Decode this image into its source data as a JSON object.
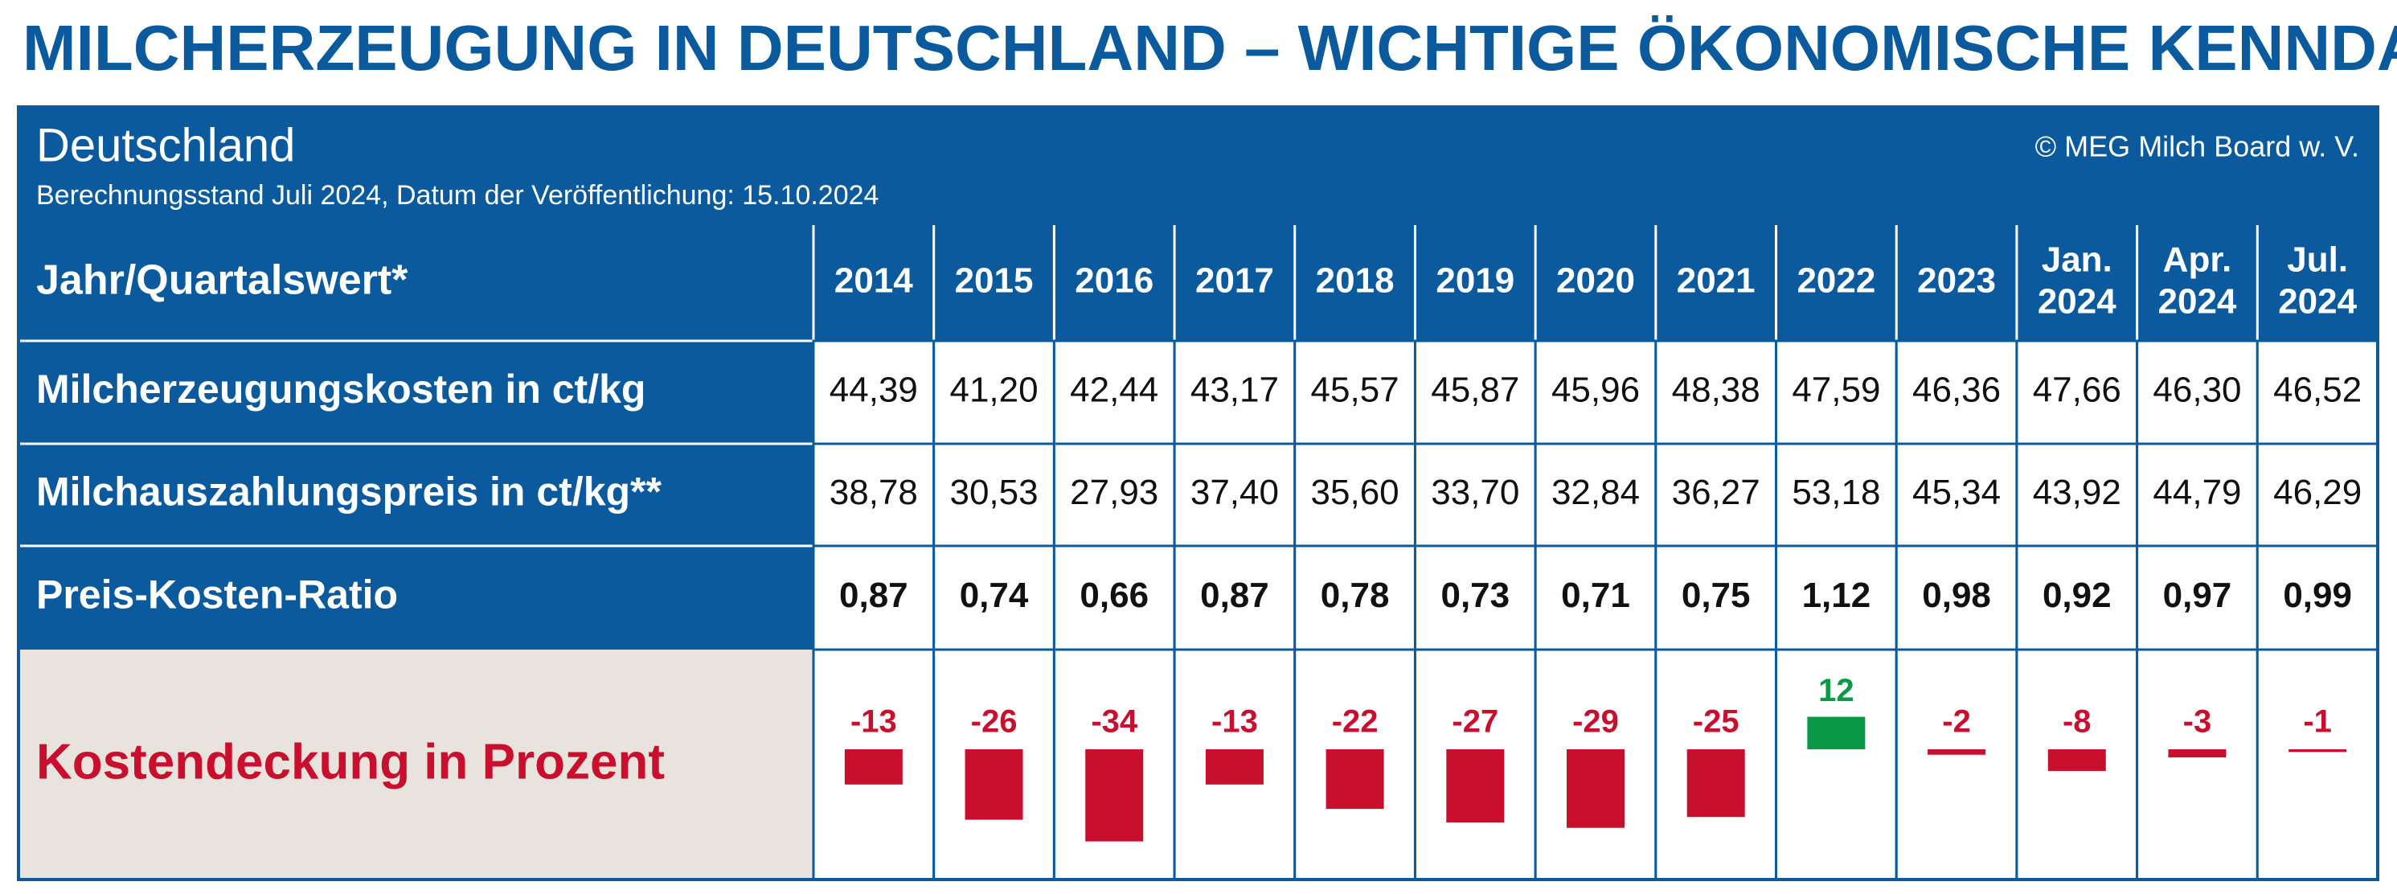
{
  "title": "MILCHERZEUGUNG IN DEUTSCHLAND – WICHTIGE ÖKONOMISCHE KENNDATEN",
  "header": {
    "region": "Deutschland",
    "subtitle": "Berechnungsstand Juli 2024, Datum der Veröffentlichung: 15.10.2024",
    "copyright": "© MEG Milch Board w. V."
  },
  "table": {
    "row_header": "Jahr/Quartalswert*",
    "columns": [
      [
        "2014"
      ],
      [
        "2015"
      ],
      [
        "2016"
      ],
      [
        "2017"
      ],
      [
        "2018"
      ],
      [
        "2019"
      ],
      [
        "2020"
      ],
      [
        "2021"
      ],
      [
        "2022"
      ],
      [
        "2023"
      ],
      [
        "Jan.",
        "2024"
      ],
      [
        "Apr.",
        "2024"
      ],
      [
        "Jul.",
        "2024"
      ]
    ],
    "rows": [
      {
        "label": "Milcherzeugungskosten in ct/kg",
        "values": [
          "44,39",
          "41,20",
          "42,44",
          "43,17",
          "45,57",
          "45,87",
          "45,96",
          "48,38",
          "47,59",
          "46,36",
          "47,66",
          "46,30",
          "46,52"
        ]
      },
      {
        "label": "Milchauszahlungspreis in ct/kg**",
        "values": [
          "38,78",
          "30,53",
          "27,93",
          "37,40",
          "35,60",
          "33,70",
          "32,84",
          "36,27",
          "53,18",
          "45,34",
          "43,92",
          "44,79",
          "46,29"
        ]
      },
      {
        "label": "Preis-Kosten-Ratio",
        "bold": true,
        "values": [
          "0,87",
          "0,74",
          "0,66",
          "0,87",
          "0,78",
          "0,73",
          "0,71",
          "0,75",
          "1,12",
          "0,98",
          "0,92",
          "0,97",
          "0,99"
        ]
      }
    ]
  },
  "coverage": {
    "label": "Kostendeckung in Prozent",
    "values": [
      -13,
      -26,
      -34,
      -13,
      -22,
      -27,
      -29,
      -25,
      12,
      -2,
      -8,
      -3,
      -1
    ],
    "positive_color": "#0a9a47",
    "negative_color": "#c8102e"
  }
}
